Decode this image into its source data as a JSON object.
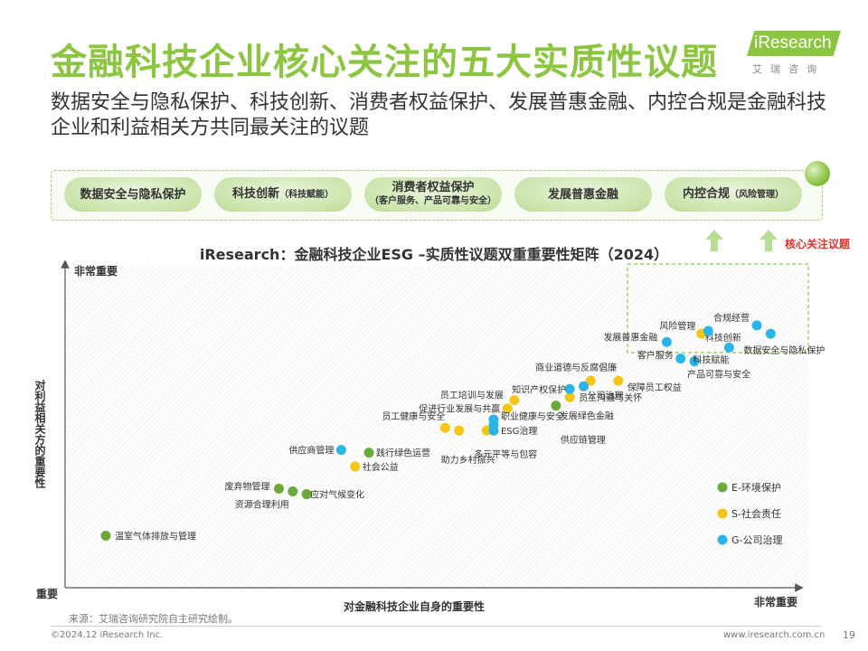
{
  "header": {
    "title": "金融科技企业核心关注的五大实质性议题",
    "subtitle": "数据安全与隐私保护、科技创新、消费者权益保护、发展普惠金融、内控合规是金融科技企业和利益相关方共同最关注的议题"
  },
  "logo": {
    "text": "iResearch",
    "cn": "艾瑞咨询"
  },
  "topics": [
    {
      "main": "数据安全与隐私保护",
      "sub": ""
    },
    {
      "main": "科技创新",
      "sub": "（科技赋能）"
    },
    {
      "main": "消费者权益保护",
      "sub": "（客户服务、产品可靠与安全）"
    },
    {
      "main": "发展普惠金融",
      "sub": ""
    },
    {
      "main": "内控合规",
      "sub": "（风险管理）"
    }
  ],
  "core_label": "核心关注议题",
  "colors": {
    "E": "#6aaa3a",
    "S": "#f5c518",
    "G": "#29b5e8",
    "accent": "#8cc540"
  },
  "chart_data": {
    "type": "scatter",
    "title": "iResearch：金融科技企业ESG –实质性议题双重重要性矩阵（2024）",
    "xlabel": "对金融科技企业自身的重要性",
    "ylabel": "对利益相关方的重要性",
    "x_low": "重要",
    "x_high": "非常重要",
    "y_high": "非常重要",
    "xlim": [
      0,
      100
    ],
    "ylim": [
      0,
      100
    ],
    "legend": [
      {
        "key": "E",
        "label": "E-环境保护"
      },
      {
        "key": "S",
        "label": "S-社会责任"
      },
      {
        "key": "G",
        "label": "G-公司治理"
      }
    ],
    "points": [
      {
        "label": "温室气体排放与管理",
        "cat": "E",
        "x": 3,
        "y": 9
      },
      {
        "label": "废弃物管理",
        "cat": "E",
        "x": 28,
        "y": 26
      },
      {
        "label": "资源合理利用",
        "cat": "E",
        "x": 30,
        "y": 25
      },
      {
        "label": "应对气候变化",
        "cat": "E",
        "x": 32,
        "y": 24
      },
      {
        "label": "践行绿色运营",
        "cat": "E",
        "x": 41,
        "y": 39
      },
      {
        "label": "发展绿色金融",
        "cat": "E",
        "x": 68,
        "y": 56
      },
      {
        "label": "社会公益",
        "cat": "S",
        "x": 39,
        "y": 34
      },
      {
        "label": "员工健康与安全",
        "cat": "S",
        "x": 52,
        "y": 48
      },
      {
        "label": "助力乡村振兴",
        "cat": "S",
        "x": 54,
        "y": 47
      },
      {
        "label": "多元平等与包容",
        "cat": "S",
        "x": 58,
        "y": 47
      },
      {
        "label": "促进行业发展与共赢",
        "cat": "S",
        "x": 61,
        "y": 55
      },
      {
        "label": "员工培训与发展",
        "cat": "S",
        "x": 62,
        "y": 58
      },
      {
        "label": "员工沟通与关怀",
        "cat": "S",
        "x": 70,
        "y": 59
      },
      {
        "label": "商业道德与反腐倡廉",
        "cat": "S",
        "x": 73,
        "y": 65
      },
      {
        "label": "保障员工权益",
        "cat": "S",
        "x": 77,
        "y": 65
      },
      {
        "label": "科技创新",
        "cat": "S",
        "x": 89,
        "y": 82
      },
      {
        "label": "供应商管理",
        "cat": "G",
        "x": 37,
        "y": 40
      },
      {
        "label": "职业健康与安全",
        "cat": "G",
        "x": 59,
        "y": 51
      },
      {
        "label": "供应链管理",
        "cat": "G",
        "x": 59,
        "y": 49
      },
      {
        "label": "ESG治理",
        "cat": "G",
        "x": 59,
        "y": 47
      },
      {
        "label": "知识产权保护",
        "cat": "G",
        "x": 70,
        "y": 62
      },
      {
        "label": "公司治理",
        "cat": "G",
        "x": 72,
        "y": 63
      },
      {
        "label": "发展普惠金融",
        "cat": "G",
        "x": 84,
        "y": 79
      },
      {
        "label": "客户服务",
        "cat": "G",
        "x": 86,
        "y": 73
      },
      {
        "label": "产品可靠与安全",
        "cat": "G",
        "x": 88,
        "y": 72
      },
      {
        "label": "风险管理",
        "cat": "G",
        "x": 90,
        "y": 83
      },
      {
        "label": "科技赋能",
        "cat": "G",
        "x": 93,
        "y": 77
      },
      {
        "label": "合规经营",
        "cat": "G",
        "x": 97,
        "y": 85
      },
      {
        "label": "数据安全与隐私保护",
        "cat": "G",
        "x": 99,
        "y": 82
      }
    ]
  },
  "footer": {
    "source": "来源：艾瑞咨询研究院自主研究绘制。",
    "copyright": "©2024.12 iResearch Inc.",
    "website": "www.iresearch.com.cn",
    "page": "19"
  }
}
